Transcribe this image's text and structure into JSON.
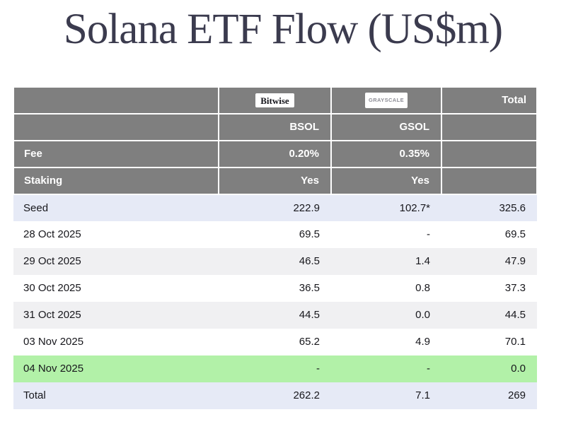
{
  "title": "Solana ETF Flow (US$m)",
  "table": {
    "logos": {
      "bitwise": "Bitwise",
      "grayscale": "GRAYSCALE"
    },
    "header": {
      "total": "Total",
      "tickers": {
        "bsol": "BSOL",
        "gsol": "GSOL"
      },
      "fee": {
        "label": "Fee",
        "bsol": "0.20%",
        "gsol": "0.35%"
      },
      "staking": {
        "label": "Staking",
        "bsol": "Yes",
        "gsol": "Yes"
      }
    },
    "rows": [
      {
        "label": "Seed",
        "bsol": "222.9",
        "gsol": "102.7*",
        "total": "325.6",
        "style": "accent"
      },
      {
        "label": "28 Oct 2025",
        "bsol": "69.5",
        "gsol": "-",
        "total": "69.5",
        "style": "plain"
      },
      {
        "label": "29 Oct 2025",
        "bsol": "46.5",
        "gsol": "1.4",
        "total": "47.9",
        "style": "stripe"
      },
      {
        "label": "30 Oct 2025",
        "bsol": "36.5",
        "gsol": "0.8",
        "total": "37.3",
        "style": "plain"
      },
      {
        "label": "31 Oct 2025",
        "bsol": "44.5",
        "gsol": "0.0",
        "total": "44.5",
        "style": "stripe"
      },
      {
        "label": "03 Nov 2025",
        "bsol": "65.2",
        "gsol": "4.9",
        "total": "70.1",
        "style": "plain"
      },
      {
        "label": "04 Nov 2025",
        "bsol": "-",
        "gsol": "-",
        "total": "0.0",
        "style": "green"
      },
      {
        "label": "Total",
        "bsol": "262.2",
        "gsol": "7.1",
        "total": "269",
        "style": "accent"
      }
    ]
  },
  "colors": {
    "header_bg": "#7f7f7f",
    "accent_row_bg": "#e6eaf6",
    "stripe_row_bg": "#f0f0f2",
    "highlight_row_bg": "#b2f1a8",
    "title_color": "#3b3b4e"
  },
  "chart_data": {
    "type": "table",
    "title": "Solana ETF Flow (US$m)",
    "columns": [
      "",
      "Bitwise BSOL",
      "Grayscale GSOL",
      "Total"
    ],
    "fund_meta": {
      "fee": {
        "BSOL": "0.20%",
        "GSOL": "0.35%"
      },
      "staking": {
        "BSOL": "Yes",
        "GSOL": "Yes"
      }
    },
    "rows": [
      [
        "Seed",
        "222.9",
        "102.7*",
        "325.6"
      ],
      [
        "28 Oct 2025",
        "69.5",
        "-",
        "69.5"
      ],
      [
        "29 Oct 2025",
        "46.5",
        "1.4",
        "47.9"
      ],
      [
        "30 Oct 2025",
        "36.5",
        "0.8",
        "37.3"
      ],
      [
        "31 Oct 2025",
        "44.5",
        "0.0",
        "44.5"
      ],
      [
        "03 Nov 2025",
        "65.2",
        "4.9",
        "70.1"
      ],
      [
        "04 Nov 2025",
        "-",
        "-",
        "0.0"
      ],
      [
        "Total",
        "262.2",
        "7.1",
        "269"
      ]
    ],
    "notes": "04 Nov 2025 row highlighted green; Seed and Total rows highlighted light blue"
  }
}
